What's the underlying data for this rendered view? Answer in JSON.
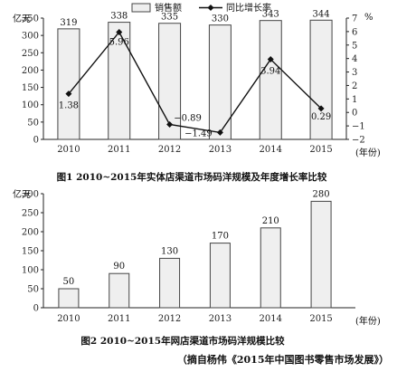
{
  "chart_data": [
    {
      "type": "bar+line",
      "title": "图1  2010~2015年实体店渠道市场码洋规模及年度增长率比较",
      "xlabel": "(年份)",
      "ylabel_left": "亿元",
      "ylabel_right": "%",
      "categories": [
        "2010",
        "2011",
        "2012",
        "2013",
        "2014",
        "2015"
      ],
      "series": [
        {
          "name": "销售额",
          "kind": "bar",
          "axis": "left",
          "values": [
            319,
            338,
            335,
            330,
            343,
            344
          ]
        },
        {
          "name": "同比增长率",
          "kind": "line",
          "axis": "right",
          "values": [
            1.38,
            5.96,
            -0.89,
            -1.49,
            3.94,
            0.29
          ]
        }
      ],
      "ylim_left": [
        0,
        350
      ],
      "ylim_right": [
        -2,
        7
      ],
      "yticks_left": [
        "0",
        "50",
        "100",
        "150",
        "200",
        "250",
        "300",
        "350"
      ],
      "yticks_right": [
        "−2",
        "−1",
        "0",
        "1",
        "2",
        "3",
        "4",
        "5",
        "6",
        "7"
      ],
      "legend_position": "top-center",
      "grid": false
    },
    {
      "type": "bar",
      "title": "图2  2010~2015年网店渠道市场码洋规模比较",
      "xlabel": "(年份)",
      "ylabel": "亿元",
      "categories": [
        "2010",
        "2011",
        "2012",
        "2013",
        "2014",
        "2015"
      ],
      "values": [
        50,
        90,
        130,
        170,
        210,
        280
      ],
      "ylim": [
        0,
        300
      ],
      "yticks": [
        "0",
        "50",
        "100",
        "150",
        "200",
        "250",
        "300"
      ],
      "grid": false
    }
  ],
  "source": "（摘自杨伟《2015年中国图书零售市场发展》）",
  "colors": {
    "bar_fill": "#efefef",
    "bar_stroke": "#444444",
    "line": "#111111"
  }
}
